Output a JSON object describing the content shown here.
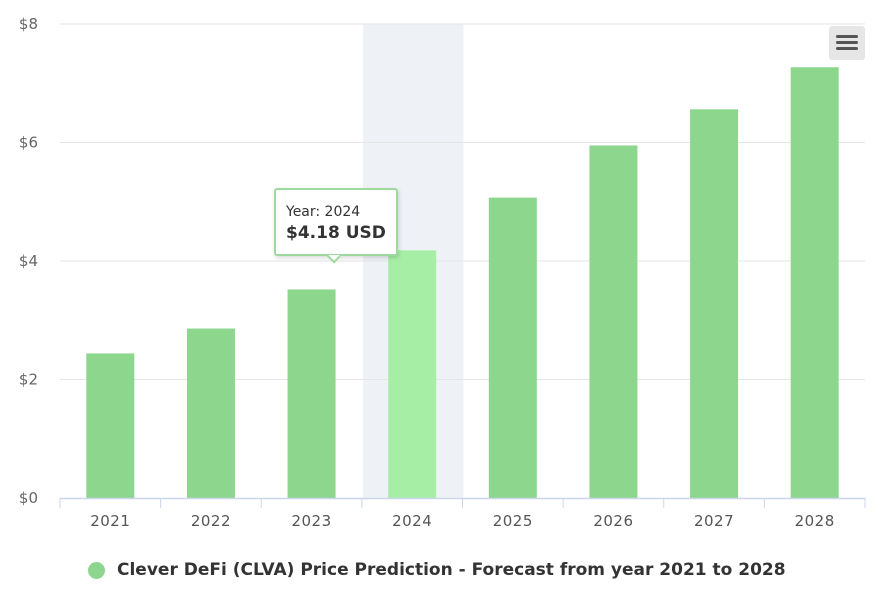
{
  "chart_data": {
    "type": "bar",
    "categories": [
      "2021",
      "2022",
      "2023",
      "2024",
      "2025",
      "2026",
      "2027",
      "2028"
    ],
    "series": [
      {
        "name": "Clever DeFi (CLVA) Price Prediction - Forecast from year 2021 to 2028",
        "values": [
          2.44,
          2.86,
          3.52,
          4.18,
          5.07,
          5.95,
          6.56,
          7.27
        ]
      }
    ],
    "ylim": [
      0,
      8
    ],
    "yticks": [
      0,
      2,
      4,
      6,
      8
    ],
    "ytick_labels": [
      "$0",
      "$2",
      "$4",
      "$6",
      "$8"
    ],
    "title": "",
    "xlabel": "",
    "ylabel": "",
    "grid": true,
    "legend_position": "bottom-left",
    "highlighted_category": "2024",
    "colors": {
      "bar": "#8dd68d",
      "bar_hover": "#a6eea6",
      "hover_band": "#eef2f7",
      "grid": "#e6e6e6",
      "axis": "#ccd6eb"
    }
  },
  "tooltip": {
    "line1": "Year: 2024",
    "line2": "$4.18 USD"
  },
  "legend": {
    "label": "Clever DeFi (CLVA) Price Prediction - Forecast from year 2021 to 2028",
    "color": "#8dd68d"
  },
  "menu": {
    "icon": "hamburger-menu-icon"
  }
}
